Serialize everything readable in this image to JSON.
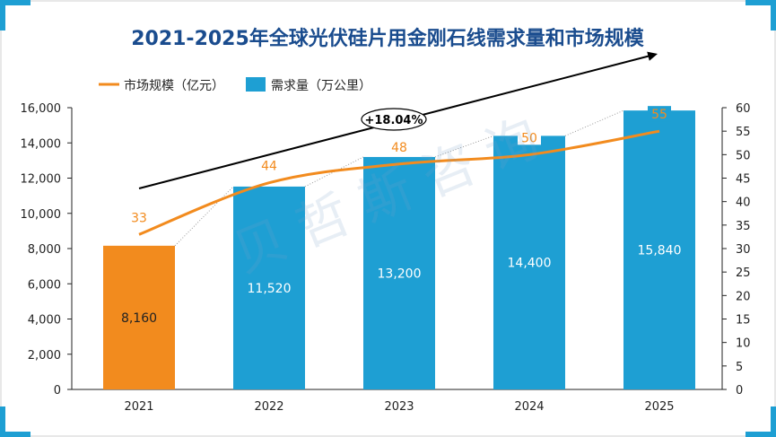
{
  "title": "2021-2025年全球光伏硅片用金刚石线需求量和市场规模",
  "watermark": "贝哲斯咨询",
  "colors": {
    "title": "#1A4C8E",
    "bar": "#1E9FD3",
    "bar_highlight": "#F28B1E",
    "line": "#F28B1E",
    "frame_accent": "#1E9FD3",
    "arrow": "#000000"
  },
  "chart_data": {
    "type": "bar",
    "title": "2021-2025年全球光伏硅片用金刚石线需求量和市场规模",
    "categories": [
      "2021",
      "2022",
      "2023",
      "2024",
      "2025"
    ],
    "series": [
      {
        "name": "需求量（万公里）",
        "type": "bar",
        "axis": "left",
        "values": [
          8160,
          11520,
          13200,
          14400,
          15840
        ],
        "labels": [
          "8,160",
          "11,520",
          "13,200",
          "14,400",
          "15,840"
        ]
      },
      {
        "name": "市场规模（亿元）",
        "type": "line",
        "axis": "right",
        "values": [
          33,
          44,
          48,
          50,
          55
        ],
        "labels": [
          "33",
          "44",
          "48",
          "50",
          "55"
        ]
      }
    ],
    "y_left": {
      "min": 0,
      "max": 16000,
      "step": 2000,
      "ticks": [
        "0",
        "2,000",
        "4,000",
        "6,000",
        "8,000",
        "10,000",
        "12,000",
        "14,000",
        "16,000"
      ]
    },
    "y_right": {
      "min": 0,
      "max": 60,
      "step": 5,
      "ticks": [
        "0",
        "5",
        "10",
        "15",
        "20",
        "25",
        "30",
        "35",
        "40",
        "45",
        "50",
        "55",
        "60"
      ]
    },
    "legend": {
      "position": "top-left",
      "entries": [
        "市场规模（亿元）",
        "需求量（万公里）"
      ]
    },
    "annotation": {
      "text": "+18.04%",
      "kind": "growth-arrow"
    },
    "grid": false
  }
}
